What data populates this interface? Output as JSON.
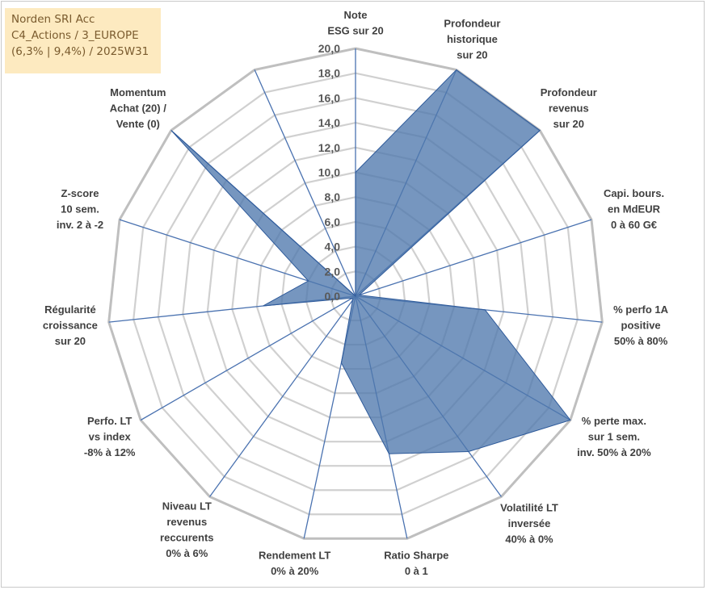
{
  "info_box": {
    "line1": "Norden SRI Acc",
    "line2": "C4_Actions / 3_EUROPE",
    "line3": "(6,3% | 9,4%) / 2025W31"
  },
  "chart_data": {
    "type": "radar",
    "title": "",
    "rlim": [
      0,
      20
    ],
    "tick_step": 2,
    "tick_labels": [
      "0,0",
      "2,0",
      "4,0",
      "6,0",
      "8,0",
      "10,0",
      "12,0",
      "14,0",
      "16,0",
      "18,0",
      "20,0"
    ],
    "grid": true,
    "fill_color": "#4f79ad",
    "line_color": "#2e5a9a",
    "grid_color": "#d0d0d0",
    "axes": [
      {
        "label": [
          "Note",
          "ESG sur 20"
        ],
        "value": 10.0
      },
      {
        "label": [
          "Profondeur",
          "historique",
          "sur 20"
        ],
        "value": 20.0
      },
      {
        "label": [
          "Profondeur",
          "revenus",
          "sur 20"
        ],
        "value": 20.0
      },
      {
        "label": [
          "Capi. bours.",
          "en MdEUR",
          "0 à 60 G€"
        ],
        "value": 0.3
      },
      {
        "label": [
          "% perfo 1A",
          "positive",
          "50% à 80%"
        ],
        "value": 10.5
      },
      {
        "label": [
          "% perte max.",
          "sur 1 sem.",
          "inv. 50% à 20%"
        ],
        "value": 20.0
      },
      {
        "label": [
          "Volatilité LT",
          "inversée",
          "40% à 0%"
        ],
        "value": 15.5
      },
      {
        "label": [
          "Ratio Sharpe",
          "0 à 1"
        ],
        "value": 13.0
      },
      {
        "label": [
          "Rendement LT",
          "0% à 20%"
        ],
        "value": 5.5
      },
      {
        "label": [
          "Niveau LT",
          "revenus",
          "reccurents",
          "0% à 6%"
        ],
        "value": 0.4
      },
      {
        "label": [
          "Perfo. LT",
          "vs index",
          "-8% à 12%"
        ],
        "value": 0.3
      },
      {
        "label": [
          "Régularité",
          "croissance",
          "sur 20"
        ],
        "value": 7.5
      },
      {
        "label": [
          "Z-score",
          "10 sem.",
          "inv. 2 à -2"
        ],
        "value": 4.0
      },
      {
        "label": [
          "Momentum",
          "Achat (20) /",
          "Vente (0)"
        ],
        "value": 20.0
      },
      {
        "label": [],
        "value": 0.0
      }
    ]
  }
}
